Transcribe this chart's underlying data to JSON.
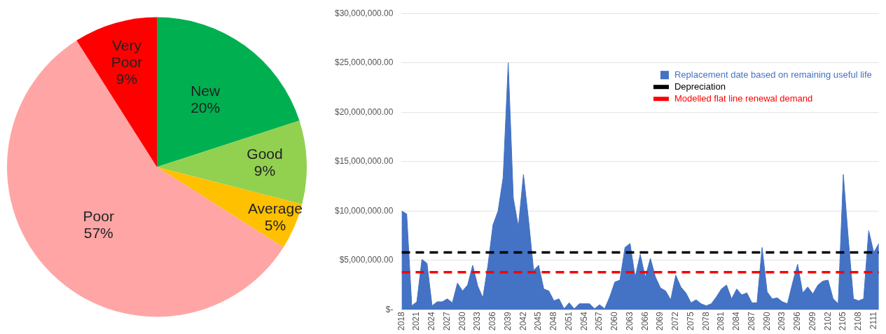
{
  "chart_data": [
    {
      "type": "pie",
      "categories": [
        "New",
        "Good",
        "Average",
        "Poor",
        "Very Poor"
      ],
      "values": [
        20,
        9,
        5,
        57,
        9
      ],
      "colors": [
        "#00b050",
        "#92d050",
        "#ffc000",
        "#ffa5a5",
        "#ff0000"
      ],
      "value_labels": [
        "20%",
        "9%",
        "5%",
        "57%",
        "9%"
      ]
    },
    {
      "type": "area",
      "legend": "top right",
      "grid": "y",
      "marker": "none",
      "xlim": [
        2018,
        2112
      ],
      "xticks": [
        2018,
        2021,
        2024,
        2027,
        2030,
        2033,
        2036,
        2039,
        2042,
        2045,
        2048,
        2051,
        2054,
        2057,
        2060,
        2063,
        2066,
        2069,
        2072,
        2075,
        2078,
        2081,
        2084,
        2087,
        2090,
        2093,
        2096,
        2099,
        2102,
        2105,
        2108,
        2111
      ],
      "ylim": [
        0,
        30000000
      ],
      "yticks": [
        {
          "value": 0,
          "label": "$-"
        },
        {
          "value": 5000000,
          "label": "$5,000,000.00"
        },
        {
          "value": 10000000,
          "label": "$10,000,000.00"
        },
        {
          "value": 15000000,
          "label": "$15,000,000.00"
        },
        {
          "value": 20000000,
          "label": "$20,000,000.00"
        },
        {
          "value": 25000000,
          "label": "$25,000,000.00"
        },
        {
          "value": 30000000,
          "label": "$30,000,000.00"
        }
      ],
      "series": [
        {
          "name": "Replacement date based on remaining useful life",
          "type": "area",
          "color": "#4472c4",
          "x": [
            2018,
            2019,
            2020,
            2021,
            2022,
            2023,
            2024,
            2025,
            2026,
            2027,
            2028,
            2029,
            2030,
            2031,
            2032,
            2033,
            2034,
            2035,
            2036,
            2037,
            2038,
            2039,
            2040,
            2041,
            2042,
            2043,
            2044,
            2045,
            2046,
            2047,
            2048,
            2049,
            2050,
            2051,
            2052,
            2053,
            2054,
            2055,
            2056,
            2057,
            2058,
            2059,
            2060,
            2061,
            2062,
            2063,
            2064,
            2065,
            2066,
            2067,
            2068,
            2069,
            2070,
            2071,
            2072,
            2073,
            2074,
            2075,
            2076,
            2077,
            2078,
            2079,
            2080,
            2081,
            2082,
            2083,
            2084,
            2085,
            2086,
            2087,
            2088,
            2089,
            2090,
            2091,
            2092,
            2093,
            2094,
            2095,
            2096,
            2097,
            2098,
            2099,
            2100,
            2101,
            2102,
            2103,
            2104,
            2105,
            2106,
            2107,
            2108,
            2109,
            2110,
            2111,
            2112
          ],
          "values": [
            10000000,
            9700000,
            400000,
            800000,
            5100000,
            4700000,
            400000,
            800000,
            800000,
            1100000,
            700000,
            2700000,
            1900000,
            2500000,
            4500000,
            2400000,
            1200000,
            4500000,
            8600000,
            10000000,
            13400000,
            25000000,
            11300000,
            8400000,
            13700000,
            9100000,
            4000000,
            4500000,
            2100000,
            1900000,
            900000,
            1100000,
            100000,
            700000,
            100000,
            600000,
            600000,
            600000,
            100000,
            500000,
            100000,
            1300000,
            2800000,
            3000000,
            6300000,
            6700000,
            3300000,
            5600000,
            3300000,
            5200000,
            3300000,
            2200000,
            1900000,
            1000000,
            3500000,
            2300000,
            1700000,
            700000,
            1000000,
            600000,
            400000,
            600000,
            1300000,
            2100000,
            2500000,
            1100000,
            2100000,
            1500000,
            1700000,
            700000,
            700000,
            6300000,
            1800000,
            1100000,
            1200000,
            800000,
            600000,
            2700000,
            4600000,
            1700000,
            2300000,
            1600000,
            2500000,
            2900000,
            3000000,
            1100000,
            600000,
            13700000,
            7100000,
            1100000,
            900000,
            1100000,
            8000000,
            5800000,
            6700000
          ]
        },
        {
          "name": "Depreciation",
          "type": "line",
          "color": "#000000",
          "line_style": "dashed",
          "x": [
            2018,
            2112
          ],
          "values": [
            5800000,
            5800000
          ]
        },
        {
          "name": "Modelled flat line renewal demand",
          "type": "line",
          "color": "#ff0000",
          "line_style": "dashed",
          "x": [
            2018,
            2112
          ],
          "values": [
            3800000,
            3800000
          ]
        }
      ]
    }
  ]
}
